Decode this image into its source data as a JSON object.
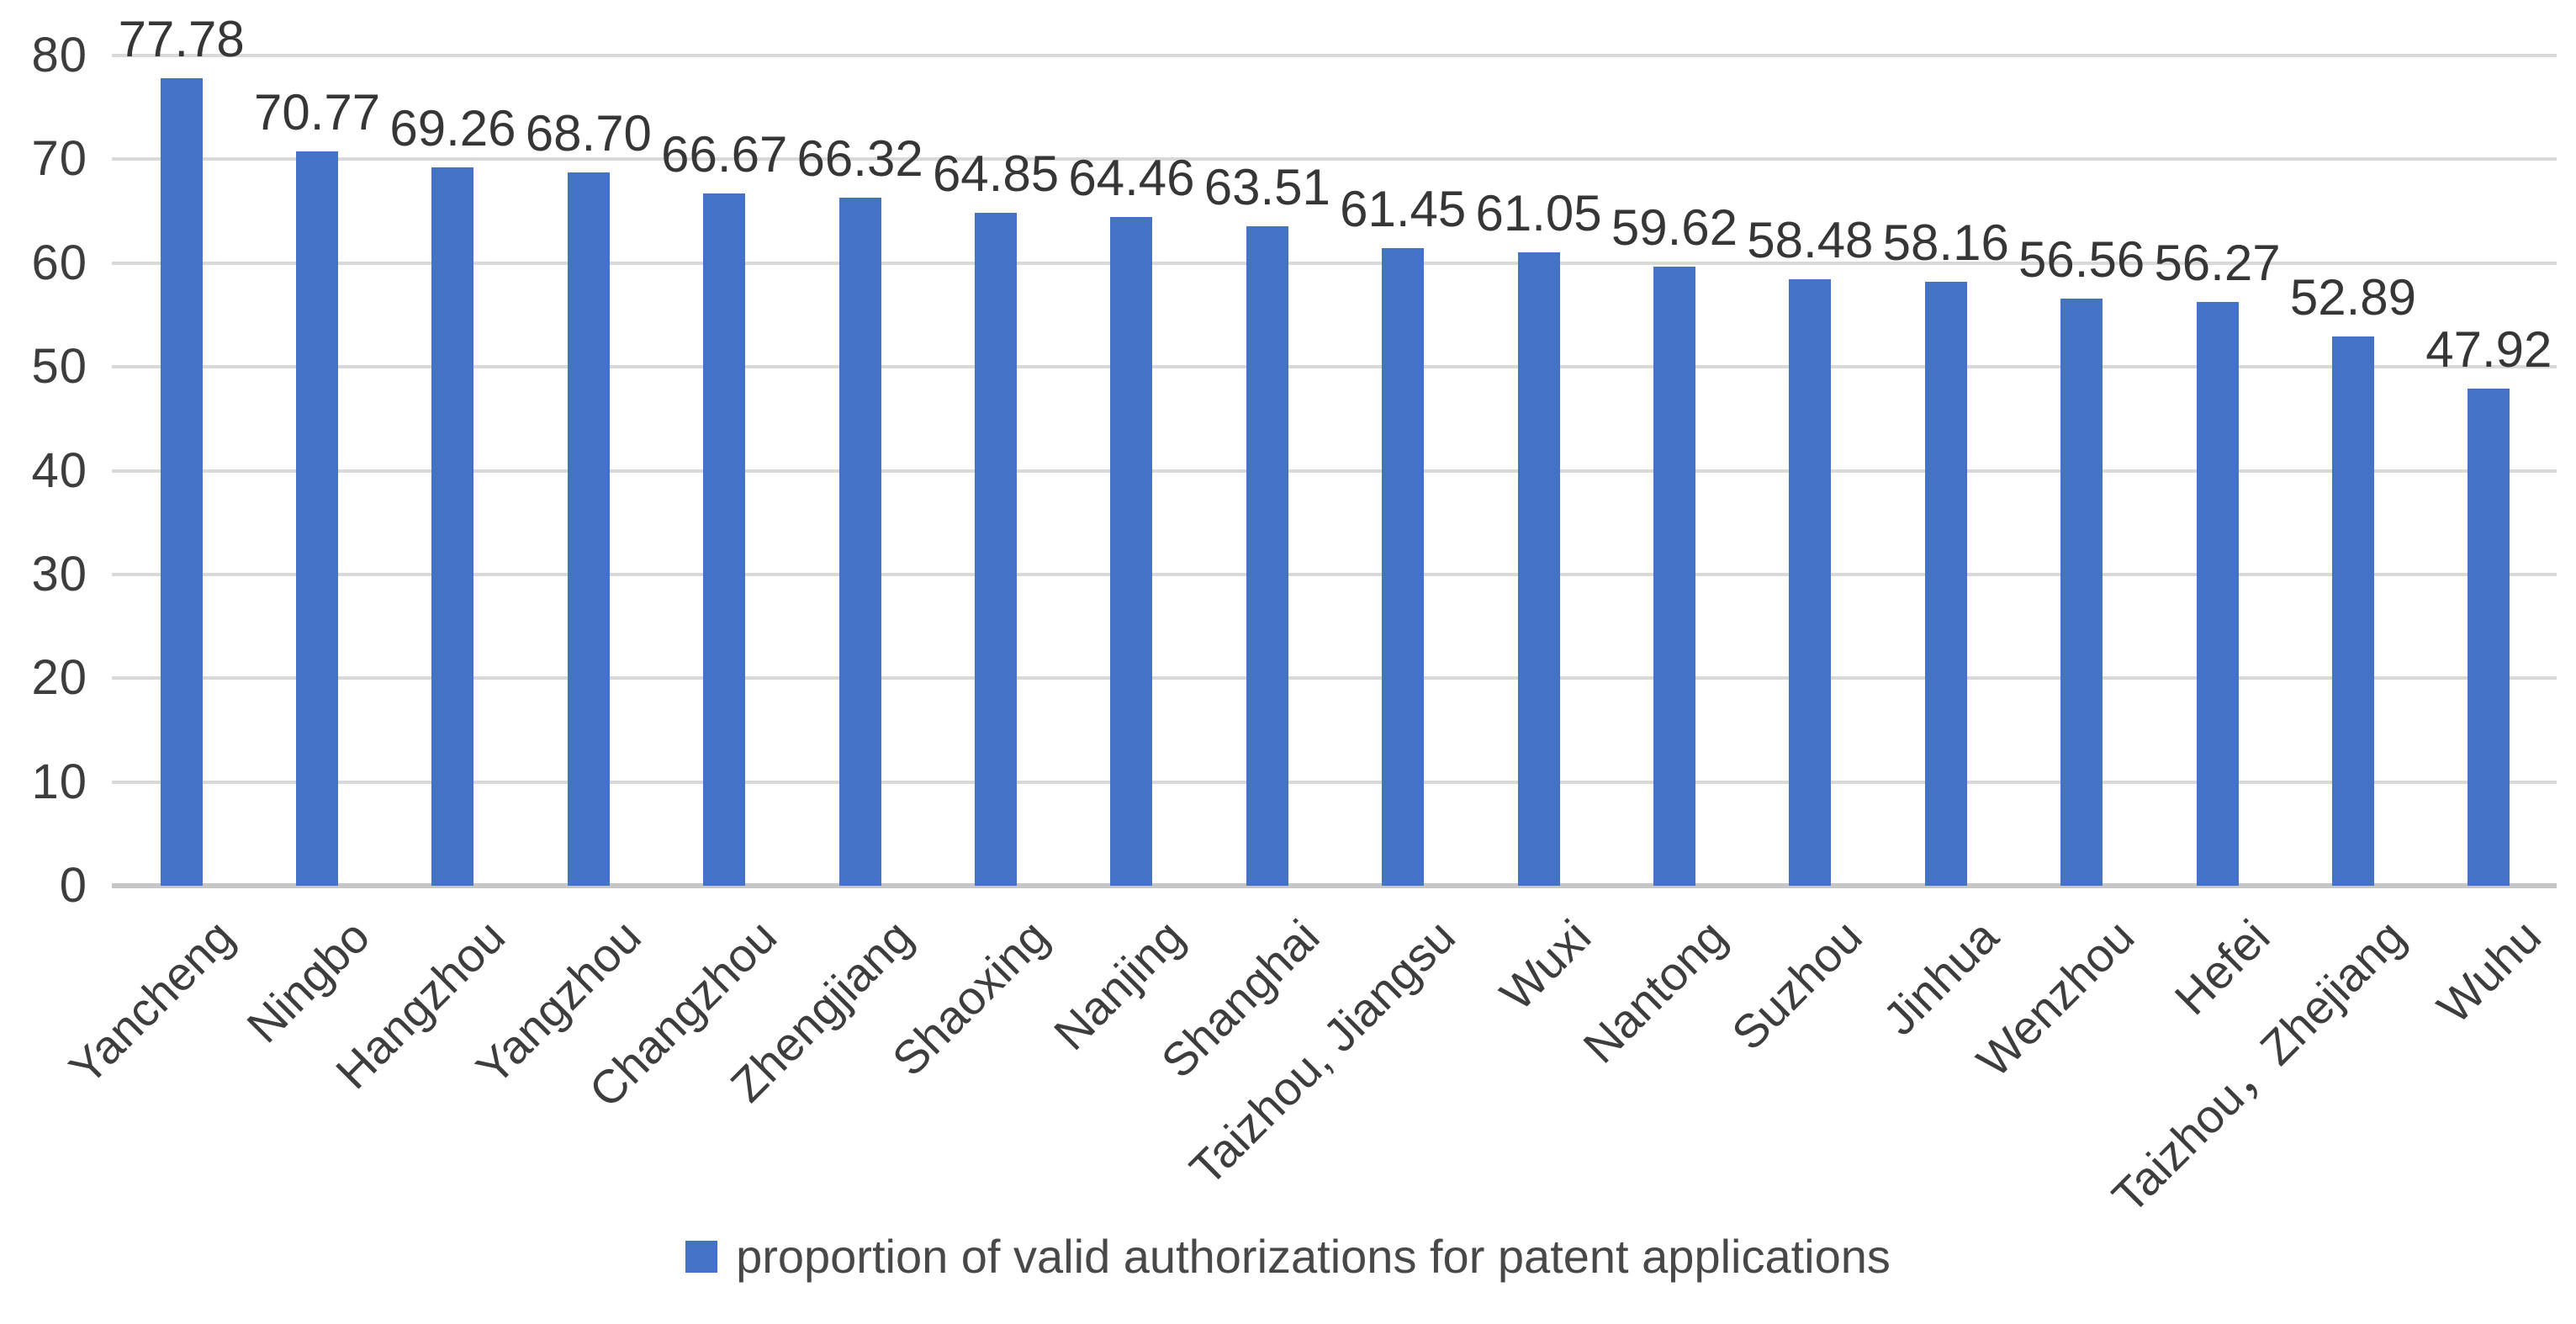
{
  "chart_data": {
    "type": "bar",
    "title": "",
    "xlabel": "",
    "ylabel": "",
    "categories": [
      "Yancheng",
      "Ningbo",
      "Hangzhou",
      "Yangzhou",
      "Changzhou",
      "Zhengjiang",
      "Shaoxing",
      "Nanjing",
      "Shanghai",
      "Taizhou, Jiangsu",
      "Wuxi",
      "Nantong",
      "Suzhou",
      "Jinhua",
      "Wenzhou",
      "Hefei",
      "Taizhou，Zhejiang",
      "Wuhu"
    ],
    "values": [
      77.78,
      70.77,
      69.26,
      68.7,
      66.67,
      66.32,
      64.85,
      64.46,
      63.51,
      61.45,
      61.05,
      59.62,
      58.48,
      58.16,
      56.56,
      56.27,
      52.89,
      47.92
    ],
    "value_labels": [
      "77.78",
      "70.77",
      "69.26",
      "68.70",
      "66.67",
      "66.32",
      "64.85",
      "64.46",
      "63.51",
      "61.45",
      "61.05",
      "59.62",
      "58.48",
      "58.16",
      "56.56",
      "56.27",
      "52.89",
      "47.92"
    ],
    "ylim": [
      0,
      80
    ],
    "yticks": [
      0,
      10,
      20,
      30,
      40,
      50,
      60,
      70,
      80
    ],
    "grid": true,
    "x_label_rotation_deg": -45,
    "legend": {
      "position": "bottom",
      "label": "proportion of valid authorizations for patent applications"
    },
    "colors": {
      "bar": "#4472c4",
      "gridline": "#d9d9d9",
      "axis_line": "#c6c6c6",
      "text": "#3d3d3d"
    }
  }
}
